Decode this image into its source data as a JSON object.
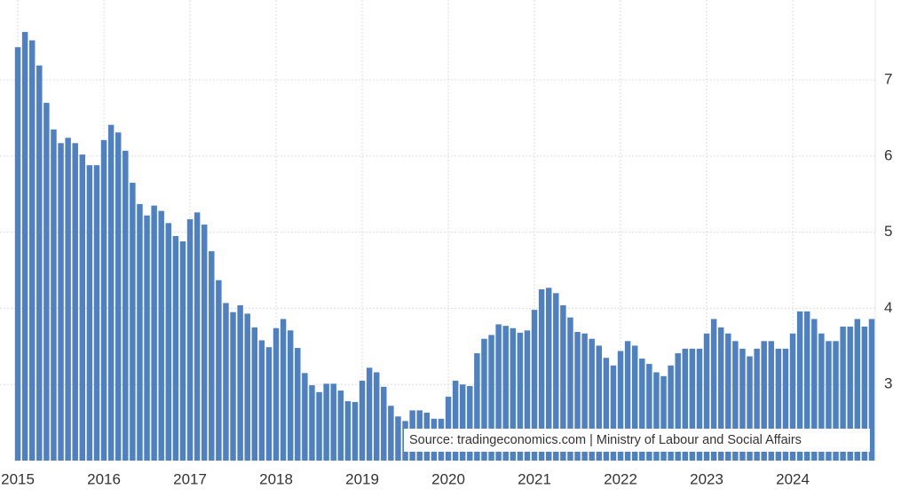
{
  "chart_data": {
    "type": "bar",
    "source": "Source: tradingeconomics.com | Ministry of Labour and Social Affairs",
    "categories": [
      "2015",
      null,
      null,
      null,
      null,
      null,
      null,
      null,
      null,
      null,
      null,
      null,
      "2016",
      null,
      null,
      null,
      null,
      null,
      null,
      null,
      null,
      null,
      null,
      null,
      "2017",
      null,
      null,
      null,
      null,
      null,
      null,
      null,
      null,
      null,
      null,
      null,
      "2018",
      null,
      null,
      null,
      null,
      null,
      null,
      null,
      null,
      null,
      null,
      null,
      "2019",
      null,
      null,
      null,
      null,
      null,
      null,
      null,
      null,
      null,
      null,
      null,
      "2020",
      null,
      null,
      null,
      null,
      null,
      null,
      null,
      null,
      null,
      null,
      null,
      "2021",
      null,
      null,
      null,
      null,
      null,
      null,
      null,
      null,
      null,
      null,
      null,
      "2022",
      null,
      null,
      null,
      null,
      null,
      null,
      null,
      null,
      null,
      null,
      null,
      "2023",
      null,
      null,
      null,
      null,
      null,
      null,
      null,
      null,
      null,
      null,
      null,
      "2024",
      null,
      null,
      null,
      null,
      null,
      null,
      null,
      null,
      null,
      null,
      null
    ],
    "values": [
      7.43,
      7.63,
      7.52,
      7.19,
      6.7,
      6.35,
      6.17,
      6.24,
      6.17,
      6.02,
      5.88,
      5.88,
      6.21,
      6.41,
      6.31,
      6.07,
      5.65,
      5.37,
      5.22,
      5.35,
      5.28,
      5.12,
      4.95,
      4.88,
      5.17,
      5.26,
      5.1,
      4.75,
      4.37,
      4.07,
      3.95,
      4.04,
      3.93,
      3.75,
      3.58,
      3.49,
      3.74,
      3.86,
      3.71,
      3.48,
      3.15,
      2.99,
      2.9,
      3.01,
      3.01,
      2.92,
      2.78,
      2.77,
      3.05,
      3.22,
      3.16,
      2.97,
      2.72,
      2.58,
      2.52,
      2.66,
      2.66,
      2.63,
      2.55,
      2.55,
      2.84,
      3.05,
      3.0,
      2.98,
      3.41,
      3.6,
      3.65,
      3.79,
      3.77,
      3.74,
      3.68,
      3.71,
      3.98,
      4.25,
      4.27,
      4.2,
      4.04,
      3.88,
      3.69,
      3.67,
      3.6,
      3.51,
      3.35,
      3.25,
      3.44,
      3.57,
      3.51,
      3.34,
      3.27,
      3.16,
      3.11,
      3.25,
      3.41,
      3.47,
      3.47,
      3.47,
      3.67,
      3.86,
      3.75,
      3.67,
      3.57,
      3.47,
      3.37,
      3.47,
      3.57,
      3.57,
      3.47,
      3.47,
      3.67,
      3.96,
      3.96,
      3.86,
      3.67,
      3.57,
      3.57,
      3.76,
      3.76,
      3.86,
      3.76,
      3.86
    ],
    "color": "#4f81c2",
    "ylim": [
      2,
      8.05
    ],
    "yticks": [
      3,
      4,
      5,
      6,
      7
    ],
    "grid": true
  }
}
